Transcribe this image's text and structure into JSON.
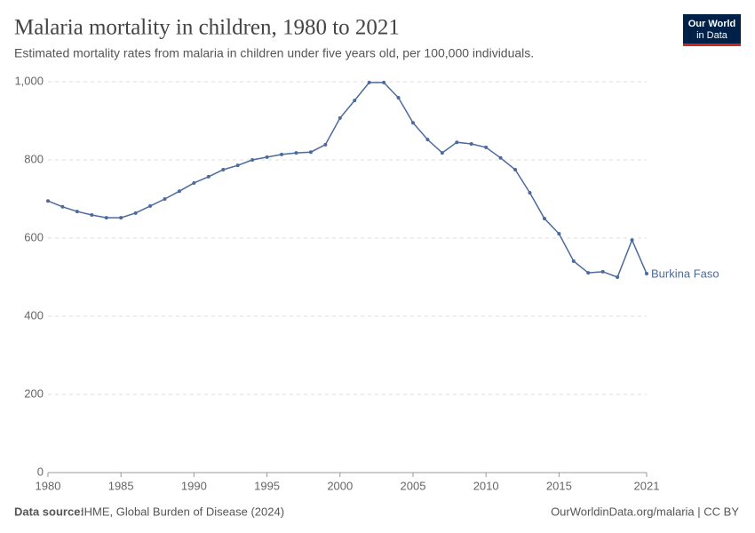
{
  "chart_data": {
    "type": "line",
    "title": "Malaria mortality in children, 1980 to 2021",
    "subtitle": "Estimated mortality rates from malaria in children under five years old, per 100,000 individuals.",
    "x": [
      1980,
      1981,
      1982,
      1983,
      1984,
      1985,
      1986,
      1987,
      1988,
      1989,
      1990,
      1991,
      1992,
      1993,
      1994,
      1995,
      1996,
      1997,
      1998,
      1999,
      2000,
      2001,
      2002,
      2003,
      2004,
      2005,
      2006,
      2007,
      2008,
      2009,
      2010,
      2011,
      2012,
      2013,
      2014,
      2015,
      2016,
      2017,
      2018,
      2019,
      2020,
      2021
    ],
    "series": [
      {
        "name": "Burkina Faso",
        "color": "#4c6a9c",
        "values": [
          695,
          680,
          668,
          659,
          652,
          652,
          664,
          682,
          700,
          720,
          741,
          757,
          775,
          786,
          800,
          807,
          814,
          818,
          820,
          839,
          907,
          952,
          998,
          998,
          959,
          895,
          852,
          818,
          845,
          841,
          832,
          805,
          775,
          716,
          650,
          611,
          541,
          511,
          514,
          500,
          595,
          509
        ]
      }
    ],
    "xlim": [
      1980,
      2021
    ],
    "xticks": [
      1980,
      1985,
      1990,
      1995,
      2000,
      2005,
      2010,
      2015,
      2021
    ],
    "ylim": [
      0,
      1000
    ],
    "yticks": [
      0,
      200,
      400,
      600,
      800,
      {
        "value": 1000,
        "label": "1,000"
      }
    ],
    "grid": true
  },
  "logo": [
    "Our World",
    "in Data"
  ],
  "source": {
    "label": "Data source:",
    "text": "IHME, Global Burden of Disease (2024)"
  },
  "license": "OurWorldinData.org/malaria | CC BY"
}
